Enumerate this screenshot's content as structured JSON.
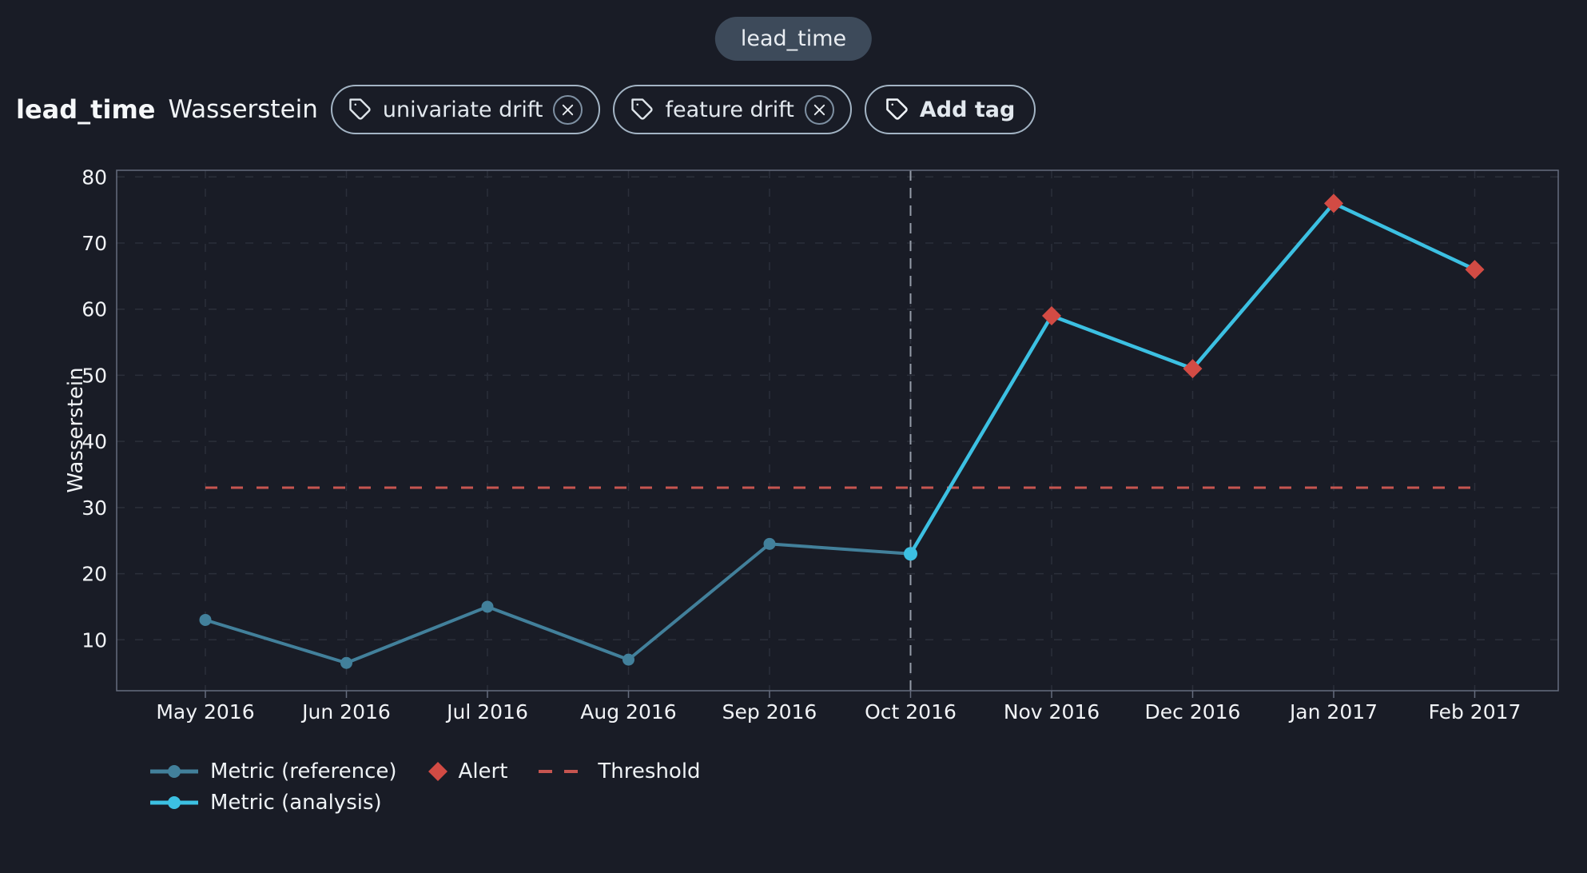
{
  "top_pill": {
    "label": "lead_time"
  },
  "header": {
    "title": "lead_time",
    "subtitle": "Wasserstein",
    "tags": [
      {
        "label": "univariate drift"
      },
      {
        "label": "feature drift"
      }
    ],
    "add_tag_label": "Add tag"
  },
  "chart_data": {
    "type": "line",
    "x_categories": [
      "May 2016",
      "Jun 2016",
      "Jul 2016",
      "Aug 2016",
      "Sep 2016",
      "Oct 2016",
      "Nov 2016",
      "Dec 2016",
      "Jan 2017",
      "Feb 2017"
    ],
    "series": [
      {
        "name": "Metric (reference)",
        "color": "#42809b",
        "marker": "circle",
        "x": [
          "May 2016",
          "Jun 2016",
          "Jul 2016",
          "Aug 2016",
          "Sep 2016",
          "Oct 2016"
        ],
        "values": [
          13,
          6.5,
          15,
          7,
          24.5,
          23
        ]
      },
      {
        "name": "Metric (analysis)",
        "color": "#3cc0e2",
        "marker": "circle",
        "x": [
          "Oct 2016",
          "Nov 2016",
          "Dec 2016",
          "Jan 2017",
          "Feb 2017"
        ],
        "values": [
          23,
          59,
          51,
          76,
          66
        ]
      }
    ],
    "alerts": {
      "name": "Alert",
      "color": "#d24b44",
      "points": [
        {
          "x": "Nov 2016",
          "y": 59
        },
        {
          "x": "Dec 2016",
          "y": 51
        },
        {
          "x": "Jan 2017",
          "y": 76
        },
        {
          "x": "Feb 2017",
          "y": 66
        }
      ]
    },
    "threshold": {
      "name": "Threshold",
      "value": 33,
      "color": "#c65550"
    },
    "separator_x": "Oct 2016",
    "ylabel": "Wasserstein",
    "yticks": [
      10,
      20,
      30,
      40,
      50,
      60,
      70,
      80
    ],
    "ylim": [
      2.3,
      81
    ],
    "grid": true,
    "legend_position": "bottom-left",
    "colors": {
      "background": "#191c26",
      "gridline": "#2b2f3a",
      "plot_border": "#666d7e",
      "separator": "#959ca8",
      "tick_label": "#f1f3f6"
    }
  }
}
